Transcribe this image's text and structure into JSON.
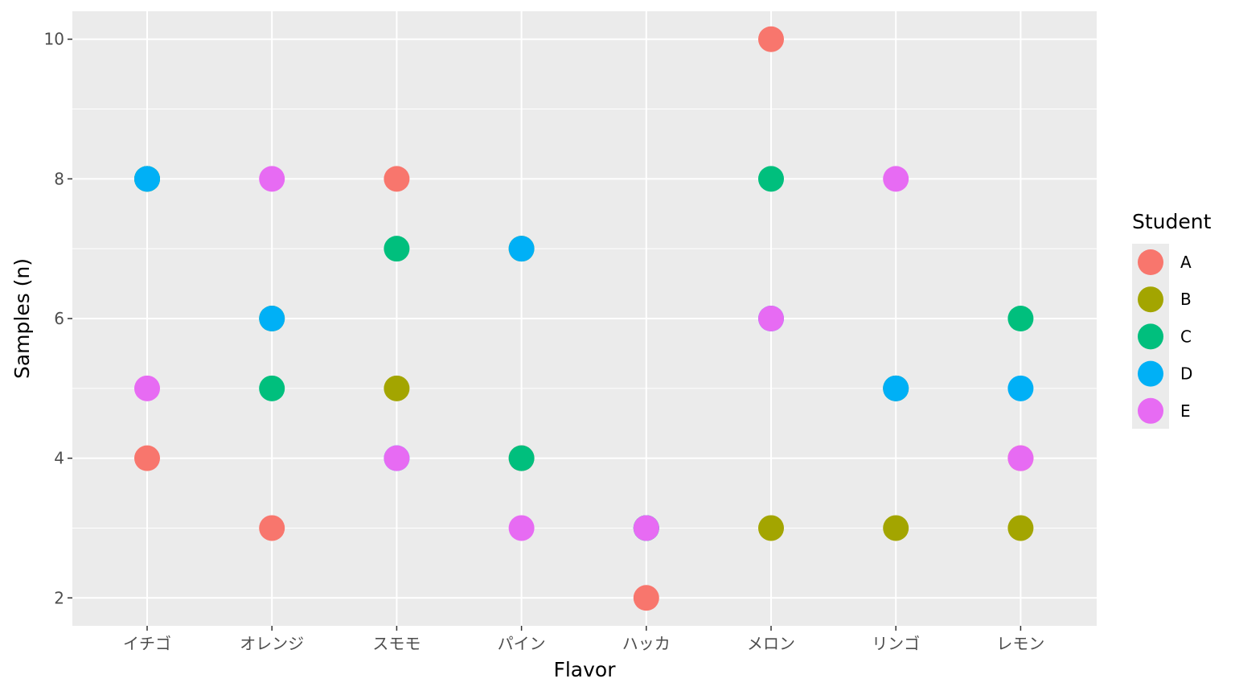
{
  "chart_data": {
    "type": "scatter",
    "xlabel": "Flavor",
    "ylabel": "Samples (n)",
    "categories": [
      "イチゴ",
      "オレンジ",
      "スモモ",
      "パイン",
      "ハッカ",
      "メロン",
      "リンゴ",
      "レモン"
    ],
    "y_ticks": [
      2,
      4,
      6,
      8,
      10
    ],
    "ylim": [
      1.6,
      10.4
    ],
    "grid": true,
    "legend": {
      "title": "Student",
      "placement": "right",
      "entries": [
        {
          "label": "A",
          "color": "#F8766D"
        },
        {
          "label": "B",
          "color": "#A3A500"
        },
        {
          "label": "C",
          "color": "#00BF7D"
        },
        {
          "label": "D",
          "color": "#00B0F6"
        },
        {
          "label": "E",
          "color": "#E76BF3"
        }
      ]
    },
    "series": [
      {
        "name": "A",
        "color": "#F8766D",
        "values": [
          4,
          3,
          8,
          4,
          2,
          10,
          5,
          4
        ]
      },
      {
        "name": "B",
        "color": "#A3A500",
        "values": [
          8,
          6,
          5,
          7,
          3,
          3,
          3,
          3
        ]
      },
      {
        "name": "C",
        "color": "#00BF7D",
        "values": [
          8,
          5,
          7,
          4,
          3,
          8,
          5,
          6
        ]
      },
      {
        "name": "D",
        "color": "#00B0F6",
        "values": [
          8,
          6,
          4,
          7,
          3,
          6,
          5,
          5
        ]
      },
      {
        "name": "E",
        "color": "#E76BF3",
        "values": [
          5,
          8,
          4,
          3,
          3,
          6,
          8,
          4
        ]
      }
    ]
  }
}
